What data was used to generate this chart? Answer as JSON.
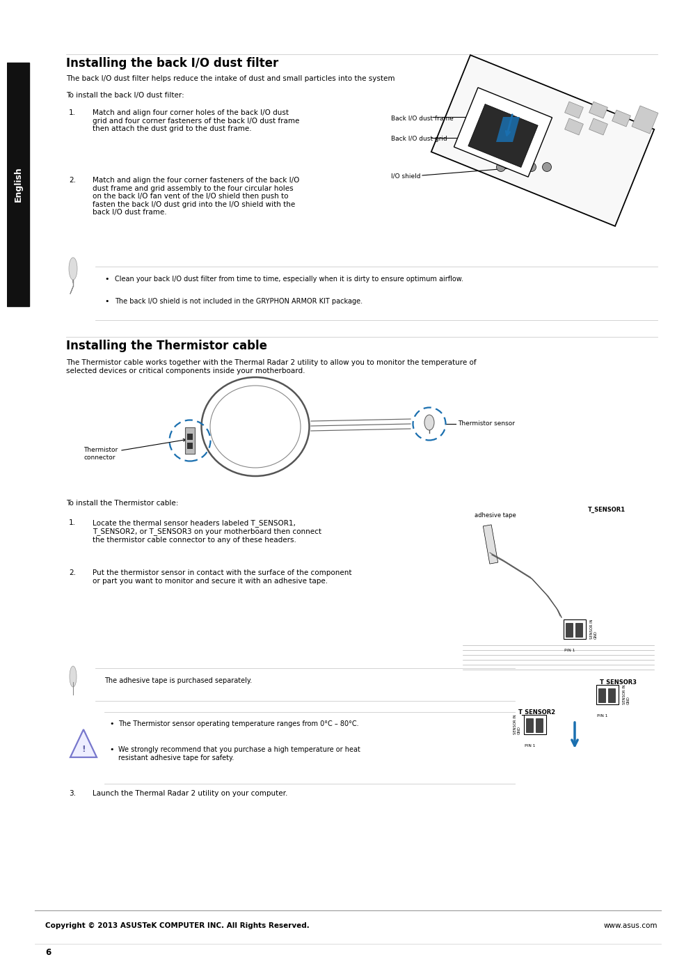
{
  "bg_color": "#ffffff",
  "page_width": 9.54,
  "page_height": 13.54,
  "sidebar_color": "#111111",
  "sidebar_text": "English",
  "title1": "Installing the back I/O dust filter",
  "title2": "Installing the Thermistor cable",
  "blue_color": "#1a6faf",
  "section1_intro1": "The back I/O dust filter helps reduce the intake of dust and small particles into the system",
  "section1_intro2": "To install the back I/O dust filter:",
  "section1_step1": "Match and align four corner holes of the back I/O dust\ngrid and four corner fasteners of the back I/O dust frame\nthen attach the dust grid to the dust frame.",
  "section1_step2": "Match and align the four corner fasteners of the back I/O\ndust frame and grid assembly to the four circular holes\non the back I/O fan vent of the I/O shield then push to\nfasten the back I/O dust grid into the I/O shield with the\nback I/O dust frame.",
  "diag_label1": "Back I/O dust frame",
  "diag_label2": "Back I/O dust grid",
  "diag_label3": "I/O shield",
  "note1_1": "Clean your back I/O dust filter from time to time, especially when it is dirty to ensure optimum airflow.",
  "note1_2": "The back I/O shield is not included in the GRYPHON ARMOR KIT package.",
  "section2_intro": "The Thermistor cable works together with the Thermal Radar 2 utility to allow you to monitor the temperature of\nselected devices or critical components inside your motherboard.",
  "connector_label": "Thermistor\nconnector",
  "sensor_label": "Thermistor sensor",
  "to_install": "To install the Thermistor cable:",
  "sec2_step1": "Locate the thermal sensor headers labeled T_SENSOR1,\nT_SENSOR2, or T_SENSOR3 on your motherboard then connect\nthe thermistor cable connector to any of these headers.",
  "sec2_step2": "Put the thermistor sensor in contact with the surface of the component\nor part you want to monitor and secure it with an adhesive tape.",
  "sec2_step3": "Launch the Thermal Radar 2 utility on your computer.",
  "adhesive_label": "adhesive tape",
  "t_sensor1": "T_SENSOR1",
  "t_sensor2": "T_SENSOR2",
  "t_sensor3": "T_SENSOR3",
  "sensor_in_gnd": "SENSOR IN\nGND",
  "pin1": "PIN 1",
  "note2": "The adhesive tape is purchased separately.",
  "warn1": "The Thermistor sensor operating temperature ranges from 0°C – 80°C.",
  "warn2": "We strongly recommend that you purchase a high temperature or heat\nresistant adhesive tape for safety.",
  "footer_left": "Copyright © 2013 ASUSTeK COMPUTER INC. All Rights Reserved.",
  "footer_right": "www.asus.com",
  "page_num": "6"
}
